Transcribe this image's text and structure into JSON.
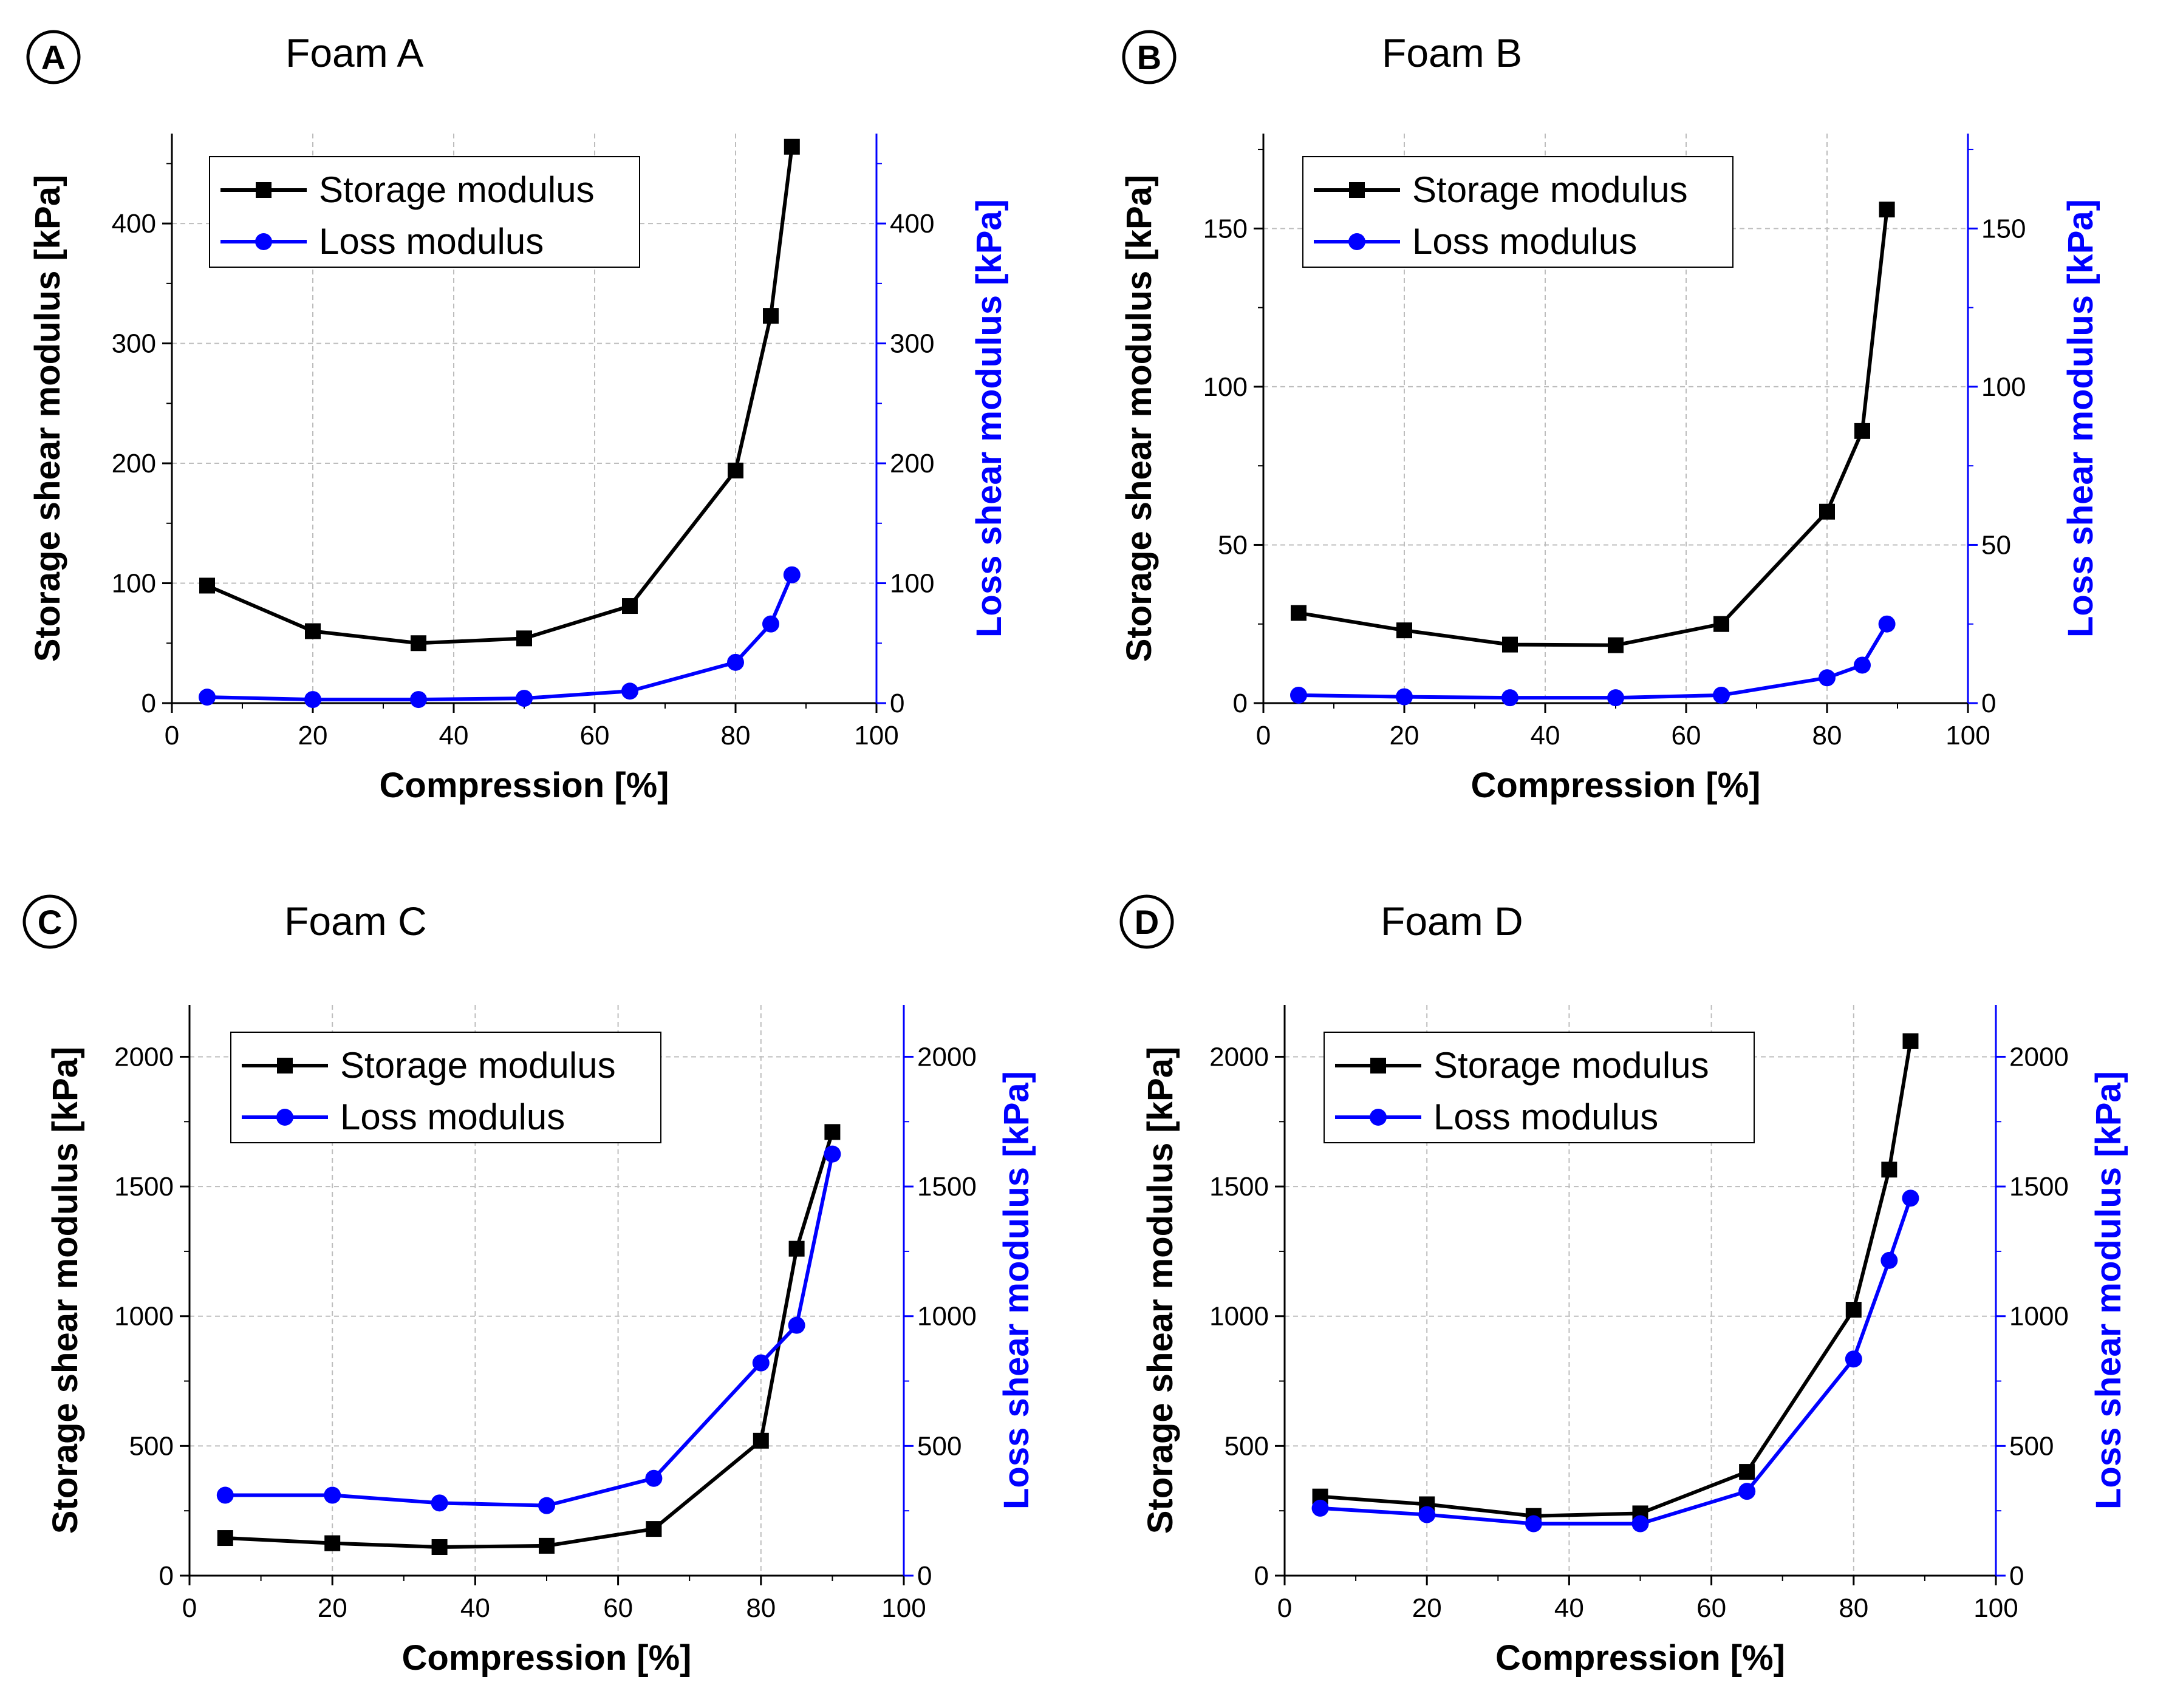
{
  "colors": {
    "storage": "#000000",
    "loss": "#0000ff",
    "grid": "#bdbdbd",
    "background": "#ffffff"
  },
  "chart_data": [
    {
      "type": "line",
      "panel_label": "A",
      "title": "Foam A",
      "xlabel": "Compression [%]",
      "ylabel": "Storage shear modulus [kPa]",
      "ylabel_right": "Loss shear modulus [kPa]",
      "xlim": [
        0,
        100
      ],
      "ylim": [
        0,
        475
      ],
      "xticks": [
        0,
        20,
        40,
        60,
        80,
        100
      ],
      "yticks": [
        0,
        100,
        200,
        300,
        400
      ],
      "grid": true,
      "legend_position": "top-left",
      "series": [
        {
          "name": "Storage modulus",
          "marker": "square",
          "color": "#000000",
          "x": [
            5,
            20,
            35,
            50,
            65,
            80,
            85,
            88
          ],
          "y": [
            98,
            60,
            50,
            54,
            81,
            194,
            323,
            464
          ]
        },
        {
          "name": "Loss modulus",
          "marker": "circle",
          "color": "#0000ff",
          "x": [
            5,
            20,
            35,
            50,
            65,
            80,
            85,
            88
          ],
          "y": [
            5,
            3,
            3,
            4,
            10,
            34,
            66,
            107
          ]
        }
      ]
    },
    {
      "type": "line",
      "panel_label": "B",
      "title": "Foam B",
      "xlabel": "Compression [%]",
      "ylabel": "Storage shear modulus [kPa]",
      "ylabel_right": "Loss shear modulus [kPa]",
      "xlim": [
        0,
        100
      ],
      "ylim": [
        0,
        180
      ],
      "xticks": [
        0,
        20,
        40,
        60,
        80,
        100
      ],
      "yticks": [
        0,
        50,
        100,
        150
      ],
      "grid": true,
      "legend_position": "top-left",
      "series": [
        {
          "name": "Storage modulus",
          "marker": "square",
          "color": "#000000",
          "x": [
            5,
            20,
            35,
            50,
            65,
            80,
            85,
            88.5
          ],
          "y": [
            28.5,
            23,
            18.5,
            18.3,
            25,
            60.5,
            86,
            156
          ]
        },
        {
          "name": "Loss modulus",
          "marker": "circle",
          "color": "#0000ff",
          "x": [
            5,
            20,
            35,
            50,
            65,
            80,
            85,
            88.5
          ],
          "y": [
            2.5,
            2,
            1.7,
            1.7,
            2.5,
            8,
            12,
            25
          ]
        }
      ]
    },
    {
      "type": "line",
      "panel_label": "C",
      "title": "Foam C",
      "xlabel": "Compression [%]",
      "ylabel": "Storage shear modulus [kPa]",
      "ylabel_right": "Loss shear modulus [kPa]",
      "xlim": [
        0,
        100
      ],
      "ylim": [
        0,
        2200
      ],
      "xticks": [
        0,
        20,
        40,
        60,
        80,
        100
      ],
      "yticks": [
        0,
        500,
        1000,
        1500,
        2000
      ],
      "grid": true,
      "legend_position": "top-left",
      "series": [
        {
          "name": "Storage modulus",
          "marker": "square",
          "color": "#000000",
          "x": [
            5,
            20,
            35,
            50,
            65,
            80,
            85,
            90
          ],
          "y": [
            145,
            125,
            110,
            115,
            180,
            520,
            1260,
            1710
          ]
        },
        {
          "name": "Loss modulus",
          "marker": "circle",
          "color": "#0000ff",
          "x": [
            5,
            20,
            35,
            50,
            65,
            80,
            85,
            90
          ],
          "y": [
            310,
            310,
            280,
            270,
            375,
            820,
            965,
            1625
          ]
        }
      ]
    },
    {
      "type": "line",
      "panel_label": "D",
      "title": "Foam D",
      "xlabel": "Compression [%]",
      "ylabel": "Storage shear modulus [kPa]",
      "ylabel_right": "Loss shear modulus [kPa]",
      "xlim": [
        0,
        100
      ],
      "ylim": [
        0,
        2200
      ],
      "xticks": [
        0,
        20,
        40,
        60,
        80,
        100
      ],
      "yticks": [
        0,
        500,
        1000,
        1500,
        2000
      ],
      "grid": true,
      "legend_position": "top-left",
      "series": [
        {
          "name": "Storage modulus",
          "marker": "square",
          "color": "#000000",
          "x": [
            5,
            20,
            35,
            50,
            65,
            80,
            85,
            88
          ],
          "y": [
            305,
            275,
            230,
            240,
            400,
            1025,
            1565,
            2060
          ]
        },
        {
          "name": "Loss modulus",
          "marker": "circle",
          "color": "#0000ff",
          "x": [
            5,
            20,
            35,
            50,
            65,
            80,
            85,
            88
          ],
          "y": [
            260,
            235,
            200,
            200,
            325,
            835,
            1215,
            1455
          ]
        }
      ]
    }
  ]
}
